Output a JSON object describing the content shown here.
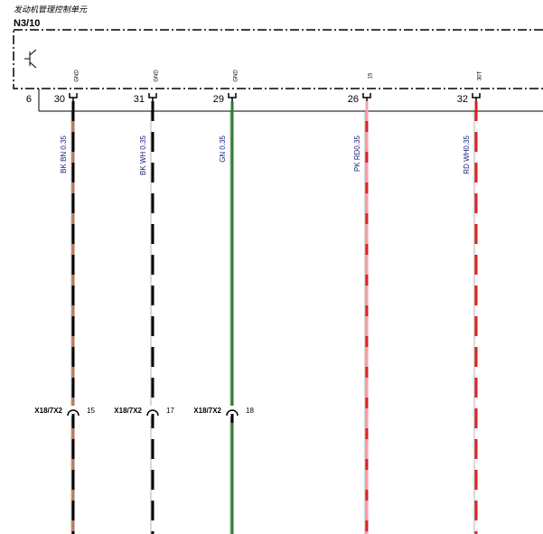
{
  "header": {
    "title": "发动机管理控制单元",
    "component": "N3/10",
    "connector": "6"
  },
  "wires": [
    {
      "pin": "30",
      "signal": "GND",
      "label": "BK BN 0.35",
      "colors": [
        "#000000",
        "#b9785a"
      ],
      "splice": {
        "name": "X18/7X2",
        "pin": "15"
      }
    },
    {
      "pin": "31",
      "signal": "GND",
      "label": "BK WH 0.35",
      "colors": [
        "#000000",
        "#ffffff"
      ],
      "splice": {
        "name": "X18/7X2",
        "pin": "17"
      }
    },
    {
      "pin": "29",
      "signal": "GND",
      "label": "GN 0.35",
      "colors": [
        "#2e7d32",
        "#2e7d32"
      ],
      "splice": {
        "name": "X18/7X2",
        "pin": "18"
      }
    },
    {
      "pin": "26",
      "signal": "15",
      "label": "PK RD0.35",
      "colors": [
        "#f4a0a8",
        "#e02020"
      ]
    },
    {
      "pin": "32",
      "signal": "30T",
      "label": "RD WH0.35",
      "colors": [
        "#e02020",
        "#ffffff"
      ]
    }
  ]
}
